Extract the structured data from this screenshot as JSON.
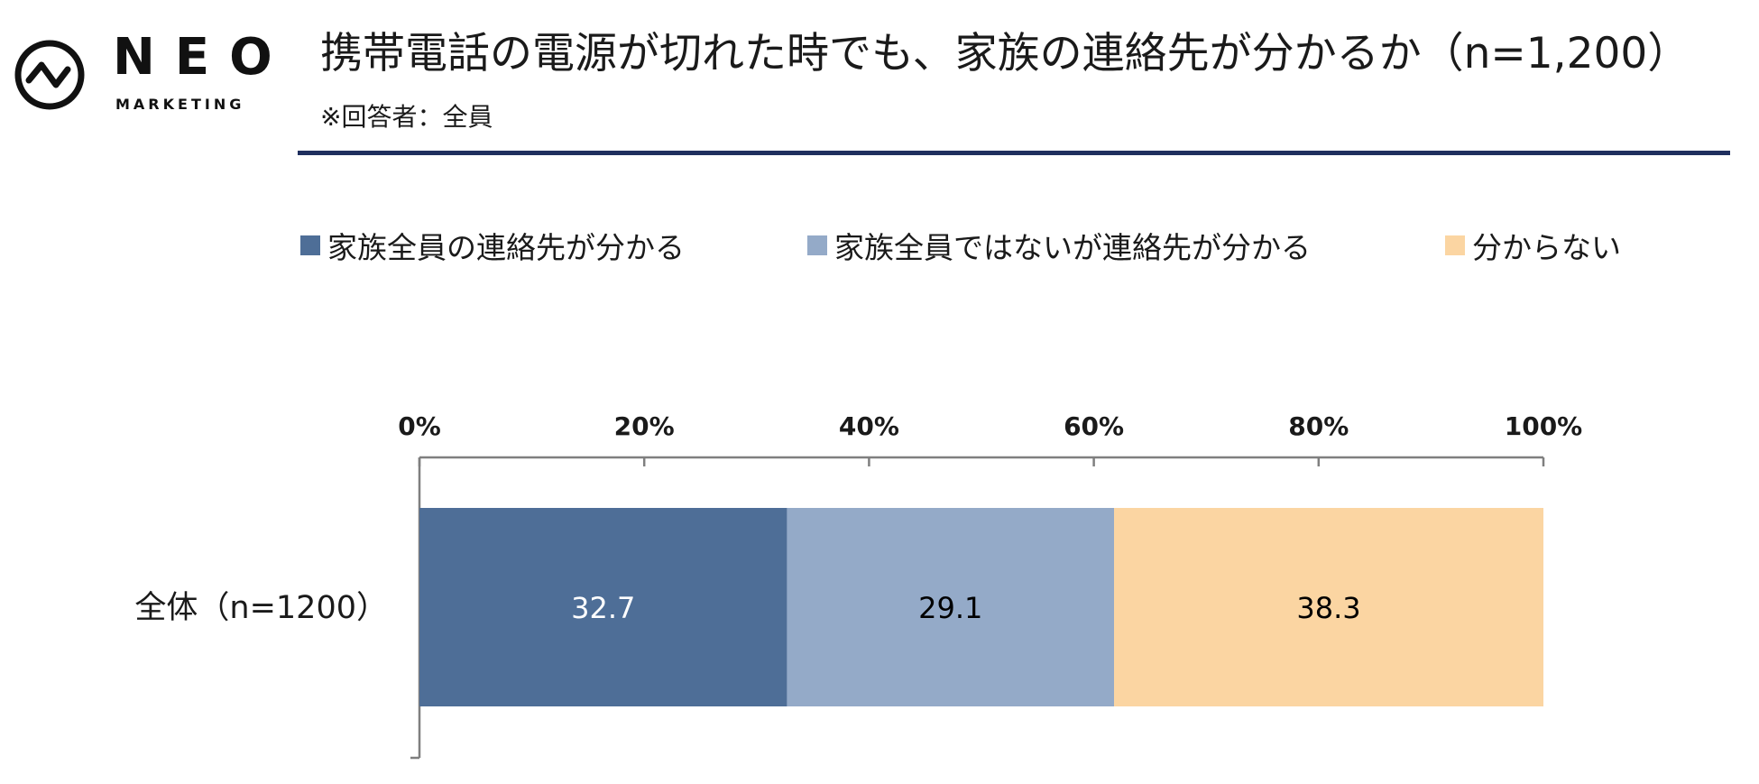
{
  "brand": {
    "logo_word": "NEO",
    "logo_sub": "MARKETING",
    "logo_icon": "neo-zigzag-circle-icon"
  },
  "header": {
    "title": "携帯電話の電源が切れた時でも、家族の連絡先が分かるか（n=1,200）",
    "subtitle": "※回答者：全員",
    "rule_color": "#1f2f5e"
  },
  "chart_data": {
    "type": "bar",
    "orientation": "horizontal",
    "stacked": true,
    "categories": [
      "全体（n=1200）"
    ],
    "series": [
      {
        "name": "家族全員の連絡先が分かる",
        "values": [
          32.7
        ],
        "color": "#4e6e97",
        "label_color": "#ffffff"
      },
      {
        "name": "家族全員ではないが連絡先が分かる",
        "values": [
          29.1
        ],
        "color": "#94aac8",
        "label_color": "#000000"
      },
      {
        "name": "分からない",
        "values": [
          38.3
        ],
        "color": "#fbd5a2",
        "label_color": "#000000"
      }
    ],
    "xlim": [
      0,
      100
    ],
    "xticks": [
      0,
      20,
      40,
      60,
      80,
      100
    ],
    "xtick_labels": [
      "0%",
      "20%",
      "40%",
      "60%",
      "80%",
      "100%"
    ],
    "axis_position": "top",
    "legend_position": "top",
    "grid": false
  }
}
